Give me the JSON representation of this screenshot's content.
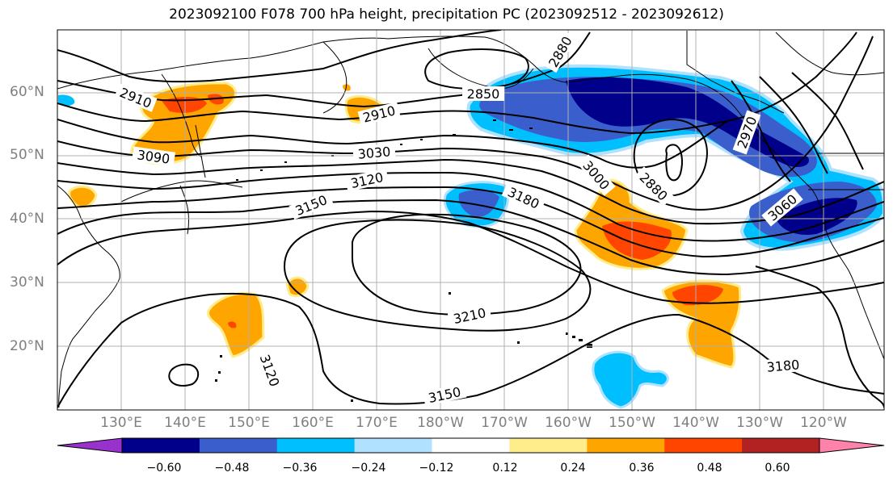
{
  "title": "2023092100 F078 700 hPa height, precipitation PC (2023092512 - 2023092612)",
  "lat_labels": [
    "60°N",
    "50°N",
    "40°N",
    "30°N",
    "20°N"
  ],
  "lon_labels": [
    "130°E",
    "140°E",
    "150°E",
    "160°E",
    "170°E",
    "180°W",
    "170°W",
    "160°W",
    "150°W",
    "140°W",
    "130°W",
    "120°W"
  ],
  "contour_labels": {
    "c2910a": "2910",
    "c2910b": "2910",
    "c2850": "2850",
    "c2880top": "2880",
    "c3090": "3090",
    "c3030": "3030",
    "c3120": "3120",
    "c3150a": "3150",
    "c3180": "3180",
    "c3000": "3000",
    "c2880": "2880",
    "c2970": "2970",
    "c3060": "3060",
    "c3210": "3210",
    "c3120b": "3120",
    "c3150b": "3150",
    "c3180b": "3180"
  },
  "colorbar": {
    "colors": [
      "#9932cc",
      "#00008b",
      "#3a5fcd",
      "#00bfff",
      "#b0e2ff",
      "#ffffff",
      "#ffec8b",
      "#ffa500",
      "#ff4500",
      "#b22222",
      "#ff82ab"
    ],
    "tick_labels": [
      "−0.60",
      "−0.48",
      "−0.36",
      "−0.24",
      "−0.12",
      "0.12",
      "0.24",
      "0.36",
      "0.48",
      "0.60"
    ]
  }
}
